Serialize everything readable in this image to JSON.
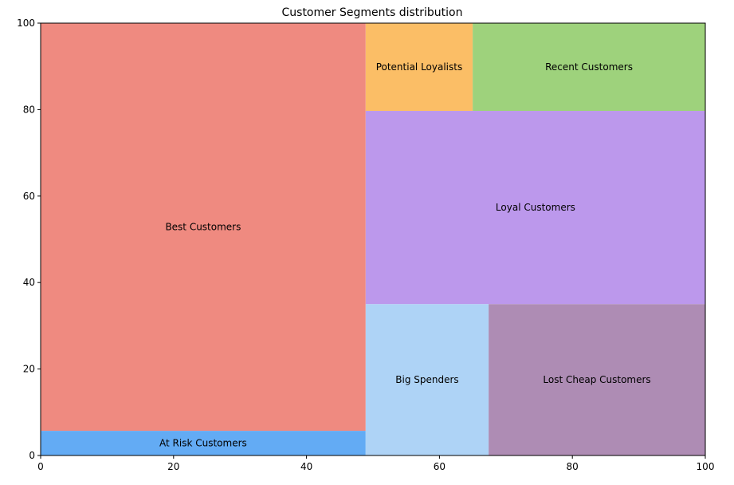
{
  "chart_data": {
    "type": "treemap",
    "title": "Customer Segments distribution",
    "xlim": [
      0,
      100
    ],
    "ylim": [
      0,
      100
    ],
    "xticks": [
      0,
      20,
      40,
      60,
      80,
      100
    ],
    "yticks": [
      0,
      20,
      40,
      60,
      80,
      100
    ],
    "grid": false,
    "rects": [
      {
        "label": "Best Customers",
        "x": 0,
        "y": 5.7,
        "dx": 48.9,
        "dy": 94.3,
        "color": "#ef8a80"
      },
      {
        "label": "At Risk Customers",
        "x": 0,
        "y": 0,
        "dx": 48.9,
        "dy": 5.7,
        "color": "#63abf4"
      },
      {
        "label": "Potential Loyalists",
        "x": 48.9,
        "y": 79.7,
        "dx": 16.1,
        "dy": 20.3,
        "color": "#fbbe66"
      },
      {
        "label": "Recent Customers",
        "x": 65.0,
        "y": 79.7,
        "dx": 35.0,
        "dy": 20.3,
        "color": "#9ed27c"
      },
      {
        "label": "Loyal Customers",
        "x": 48.9,
        "y": 35.0,
        "dx": 51.1,
        "dy": 44.7,
        "color": "#bc98ec"
      },
      {
        "label": "Big Spenders",
        "x": 48.9,
        "y": 0,
        "dx": 18.5,
        "dy": 35.0,
        "color": "#aed3f6"
      },
      {
        "label": "Lost Cheap Customers",
        "x": 67.4,
        "y": 0,
        "dx": 32.6,
        "dy": 35.0,
        "color": "#ae8cb4"
      }
    ]
  }
}
